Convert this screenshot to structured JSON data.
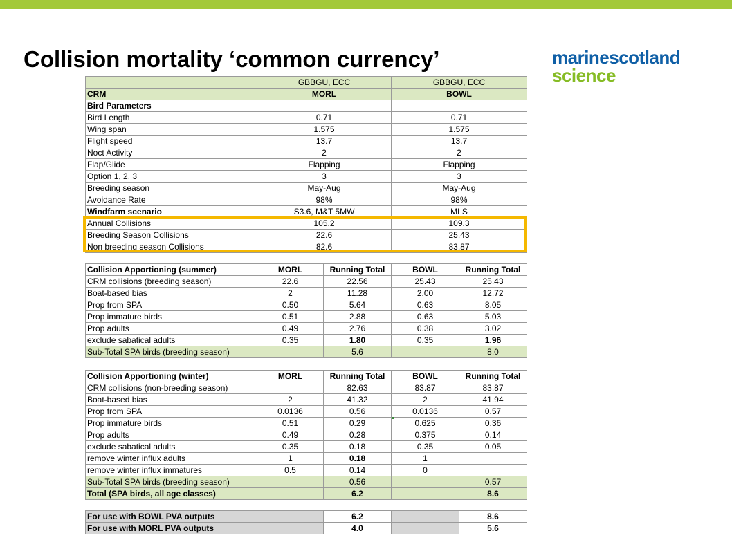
{
  "slide": {
    "title": "Collision mortality ‘common currency’"
  },
  "logo": {
    "part1": "marine",
    "part2": "scotland",
    "part3": "science"
  },
  "params": {
    "header": [
      "",
      "GBBGU, ECC",
      "GBBGU, ECC"
    ],
    "rows": [
      {
        "label": "CRM",
        "v1": "MORL",
        "v2": "BOWL",
        "bold": true
      },
      {
        "label": "Bird Parameters",
        "v1": "",
        "v2": "",
        "bold": true
      },
      {
        "label": "Bird Length",
        "v1": "0.71",
        "v2": "0.71"
      },
      {
        "label": "Wing span",
        "v1": "1.575",
        "v2": "1.575"
      },
      {
        "label": "Flight speed",
        "v1": "13.7",
        "v2": "13.7"
      },
      {
        "label": "Noct Activity",
        "v1": "2",
        "v2": "2"
      },
      {
        "label": "Flap/Glide",
        "v1": "Flapping",
        "v2": "Flapping"
      },
      {
        "label": "Option 1, 2, 3",
        "v1": "3",
        "v2": "3"
      },
      {
        "label": "Breeding season",
        "v1": "May-Aug",
        "v2": "May-Aug"
      },
      {
        "label": "Avoidance Rate",
        "v1": "98%",
        "v2": "98%"
      },
      {
        "label": "Windfarm scenario",
        "v1": "S3.6, M&T 5MW",
        "v2": "MLS",
        "bold": true
      },
      {
        "label": "Annual Collisions",
        "v1": "105.2",
        "v2": "109.3"
      },
      {
        "label": "Breeding Season Collisions",
        "v1": "22.6",
        "v2": "25.43"
      },
      {
        "label": "Non breeding season Collisions",
        "v1": "82.6",
        "v2": "83.87"
      }
    ]
  },
  "summer": {
    "header": [
      "Collision Apportioning (summer)",
      "MORL",
      "Running Total",
      "BOWL",
      "Running Total"
    ],
    "rows": [
      [
        "CRM collisions (breeding season)",
        "22.6",
        "22.56",
        "25.43",
        "25.43"
      ],
      [
        "Boat-based bias",
        "2",
        "11.28",
        "2.00",
        "12.72"
      ],
      [
        "Prop from SPA",
        "0.50",
        "5.64",
        "0.63",
        "8.05"
      ],
      [
        "Prop immature birds",
        "0.51",
        "2.88",
        "0.63",
        "5.03"
      ],
      [
        "Prop adults",
        "0.49",
        "2.76",
        "0.38",
        "3.02"
      ],
      [
        "exclude sabatical adults",
        "0.35",
        "1.80",
        "0.35",
        "1.96"
      ]
    ],
    "subtotal": [
      "Sub-Total SPA birds (breeding season)",
      "",
      "5.6",
      "",
      "8.0"
    ]
  },
  "winter": {
    "header": [
      "Collision Apportioning (winter)",
      "MORL",
      "Running Total",
      "BOWL",
      "Running Total"
    ],
    "rows": [
      [
        "CRM collisions (non-breeding season)",
        "",
        "82.63",
        "83.87",
        "83.87"
      ],
      [
        "Boat-based bias",
        "2",
        "41.32",
        "2",
        "41.94"
      ],
      [
        "Prop from SPA",
        "0.0136",
        "0.56",
        "0.0136",
        "0.57"
      ],
      [
        "Prop immature birds",
        "0.51",
        "0.29",
        "0.625",
        "0.36"
      ],
      [
        "Prop adults",
        "0.49",
        "0.28",
        "0.375",
        "0.14"
      ],
      [
        "exclude sabatical adults",
        "0.35",
        "0.18",
        "0.35",
        "0.05"
      ],
      [
        "remove winter influx adults",
        "1",
        "0.18",
        "1",
        ""
      ],
      [
        "remove winter influx immatures",
        "0.5",
        "0.14",
        "0",
        ""
      ]
    ],
    "subtotal": [
      "Sub-Total SPA birds (breeding season)",
      "",
      "0.56",
      "",
      "0.57"
    ],
    "total": [
      "Total (SPA birds, all age classes)",
      "",
      "6.2",
      "",
      "8.6"
    ]
  },
  "pva": {
    "rows": [
      [
        "For use with BOWL PVA outputs",
        "",
        "6.2",
        "",
        "8.6"
      ],
      [
        "For use with MORL PVA outputs",
        "",
        "4.0",
        "",
        "5.6"
      ]
    ]
  },
  "colors": {
    "accent_bar": "#a3c93a",
    "highlight_box": "#f5b800",
    "green_fill": "#dbe8c2"
  }
}
